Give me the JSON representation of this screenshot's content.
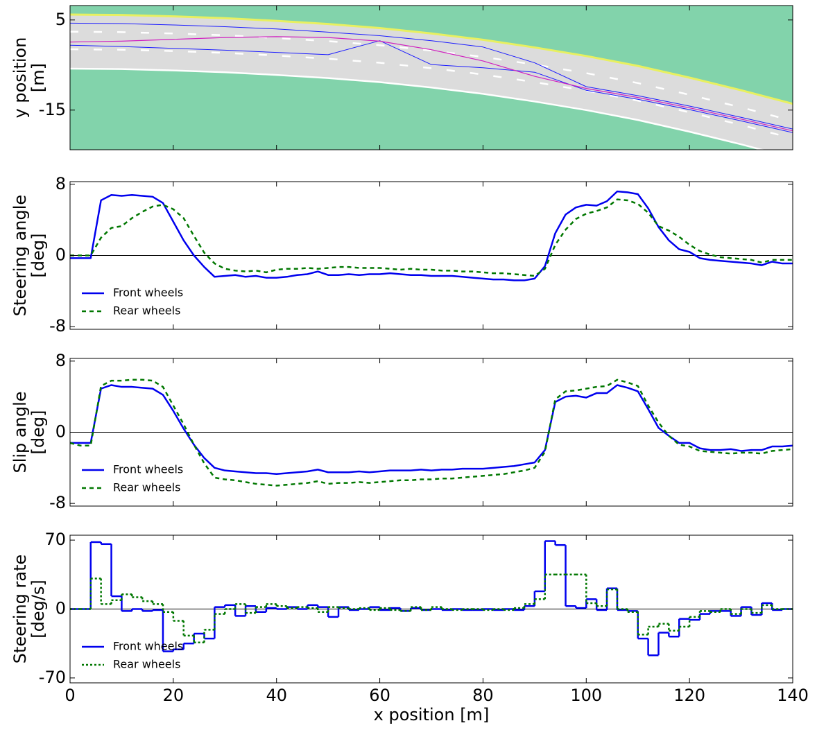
{
  "chart_data": [
    {
      "type": "line",
      "ylabel": [
        "y position",
        "[m]"
      ],
      "background_color": "#82d3ab",
      "road_color": "#dcdcdc",
      "xlim": [
        0,
        140
      ],
      "ylim": [
        -23.8,
        8.2
      ],
      "yticks": [
        5,
        -15
      ],
      "x": [
        0,
        10,
        20,
        30,
        40,
        50,
        60,
        70,
        80,
        90,
        100,
        110,
        120,
        130,
        140
      ],
      "series": [
        {
          "color": "#e8f060",
          "width": 3,
          "style": "solid",
          "values": [
            6.2,
            6.1,
            5.8,
            5.4,
            4.8,
            4.1,
            3.2,
            2.0,
            0.6,
            -1.1,
            -3.0,
            -5.2,
            -7.8,
            -10.6,
            -13.6
          ]
        },
        {
          "color": "#ffffff",
          "width": 2.5,
          "style": "solid",
          "values": [
            -5.8,
            -5.9,
            -6.2,
            -6.6,
            -7.2,
            -7.9,
            -8.8,
            -10.0,
            -11.4,
            -13.1,
            -15.0,
            -17.2,
            -19.8,
            -22.6,
            -25.6
          ]
        },
        {
          "color": "#ffffff",
          "width": 2.5,
          "style": "lane",
          "values": [
            2.4,
            2.3,
            2.0,
            1.6,
            1.0,
            0.3,
            -0.6,
            -1.8,
            -3.2,
            -4.9,
            -6.8,
            -9.0,
            -11.6,
            -14.4,
            -17.4
          ]
        },
        {
          "color": "#ffffff",
          "width": 2.5,
          "style": "lane",
          "values": [
            -1.5,
            -1.6,
            -1.9,
            -2.3,
            -2.9,
            -3.6,
            -4.5,
            -5.7,
            -7.1,
            -8.8,
            -10.7,
            -12.9,
            -15.5,
            -18.3,
            -21.3
          ]
        },
        {
          "color": "#1a1aff",
          "width": 1,
          "style": "solid",
          "values": [
            4.3,
            4.2,
            3.9,
            3.5,
            3.0,
            2.3,
            1.5,
            0.4,
            -1.0,
            -4.5,
            -9.8,
            -11.8,
            -14.1,
            -16.6,
            -19.2
          ]
        },
        {
          "color": "#1a1aff",
          "width": 1,
          "style": "solid",
          "values": [
            -0.6,
            -0.9,
            -1.3,
            -1.7,
            -2.2,
            -2.7,
            0.4,
            -4.9,
            -5.6,
            -6.6,
            -10.6,
            -12.6,
            -14.9,
            -17.4,
            -20.0
          ]
        },
        {
          "color": "#d020c0",
          "width": 1.2,
          "style": "solid",
          "values": [
            0.1,
            0.3,
            0.7,
            1.1,
            1.3,
            1.1,
            0.3,
            -1.6,
            -4.1,
            -7.5,
            -10.2,
            -12.2,
            -14.5,
            -17.0,
            -19.6
          ]
        }
      ]
    },
    {
      "type": "line",
      "ylabel": [
        "Steering angle",
        "[deg]"
      ],
      "xlim": [
        0,
        140
      ],
      "ylim": [
        -8.3,
        8.3
      ],
      "yticks": [
        8,
        0,
        -8
      ],
      "zero_line": true,
      "legend": "lower left",
      "x": [
        0,
        2,
        4,
        6,
        8,
        10,
        12,
        14,
        16,
        18,
        20,
        22,
        24,
        26,
        28,
        30,
        32,
        34,
        36,
        38,
        40,
        42,
        44,
        46,
        48,
        50,
        52,
        54,
        56,
        58,
        60,
        62,
        64,
        66,
        68,
        70,
        72,
        74,
        76,
        78,
        80,
        82,
        84,
        86,
        88,
        90,
        92,
        94,
        96,
        98,
        100,
        102,
        104,
        106,
        108,
        110,
        112,
        114,
        116,
        118,
        120,
        122,
        124,
        126,
        128,
        130,
        132,
        134,
        136,
        138,
        140
      ],
      "series": [
        {
          "name": "Front wheels",
          "color": "#0000ee",
          "style": "solid",
          "values": [
            -0.3,
            -0.3,
            -0.3,
            6.2,
            6.8,
            6.7,
            6.8,
            6.7,
            6.6,
            5.9,
            3.8,
            1.7,
            0,
            -1.3,
            -2.4,
            -2.3,
            -2.2,
            -2.4,
            -2.3,
            -2.5,
            -2.5,
            -2.4,
            -2.2,
            -2.1,
            -1.8,
            -2.2,
            -2.2,
            -2.1,
            -2.2,
            -2.1,
            -2.1,
            -2.0,
            -2.1,
            -2.2,
            -2.2,
            -2.3,
            -2.3,
            -2.3,
            -2.4,
            -2.5,
            -2.6,
            -2.7,
            -2.7,
            -2.8,
            -2.8,
            -2.6,
            -1.2,
            2.5,
            4.6,
            5.4,
            5.7,
            5.6,
            6.1,
            7.2,
            7.1,
            6.9,
            5.3,
            3.2,
            1.7,
            0.7,
            0.4,
            -0.3,
            -0.5,
            -0.6,
            -0.7,
            -0.8,
            -0.9,
            -1.1,
            -0.7,
            -0.9,
            -0.9
          ]
        },
        {
          "name": "Rear wheels",
          "color": "#007700",
          "style": "dashed",
          "values": [
            0,
            0,
            0,
            2.0,
            3.1,
            3.3,
            4.2,
            4.9,
            5.5,
            5.7,
            5.2,
            4.2,
            2.2,
            0.3,
            -0.9,
            -1.5,
            -1.7,
            -1.8,
            -1.7,
            -1.9,
            -1.6,
            -1.5,
            -1.5,
            -1.4,
            -1.5,
            -1.4,
            -1.3,
            -1.3,
            -1.4,
            -1.4,
            -1.4,
            -1.5,
            -1.6,
            -1.5,
            -1.6,
            -1.6,
            -1.7,
            -1.7,
            -1.8,
            -1.8,
            -1.9,
            -2.0,
            -2.0,
            -2.1,
            -2.2,
            -2.3,
            -1.5,
            1.2,
            2.9,
            4.1,
            4.7,
            5.0,
            5.4,
            6.3,
            6.2,
            5.8,
            4.8,
            3.3,
            2.8,
            2.1,
            1.2,
            0.5,
            0.1,
            -0.2,
            -0.3,
            -0.4,
            -0.5,
            -0.8,
            -0.5,
            -0.5,
            -0.5
          ]
        }
      ]
    },
    {
      "type": "line",
      "ylabel": [
        "Slip angle",
        "[deg]"
      ],
      "xlim": [
        0,
        140
      ],
      "ylim": [
        -8.3,
        8.3
      ],
      "yticks": [
        8,
        0,
        -8
      ],
      "zero_line": true,
      "legend": "lower left",
      "x": [
        0,
        2,
        4,
        6,
        8,
        10,
        12,
        14,
        16,
        18,
        20,
        22,
        24,
        26,
        28,
        30,
        32,
        34,
        36,
        38,
        40,
        42,
        44,
        46,
        48,
        50,
        52,
        54,
        56,
        58,
        60,
        62,
        64,
        66,
        68,
        70,
        72,
        74,
        76,
        78,
        80,
        82,
        84,
        86,
        88,
        90,
        92,
        94,
        96,
        98,
        100,
        102,
        104,
        106,
        108,
        110,
        112,
        114,
        116,
        118,
        120,
        122,
        124,
        126,
        128,
        130,
        132,
        134,
        136,
        138,
        140
      ],
      "series": [
        {
          "name": "Front wheels",
          "color": "#0000ee",
          "style": "solid",
          "values": [
            -1.2,
            -1.2,
            -1.2,
            4.9,
            5.3,
            5.1,
            5.1,
            5.0,
            4.9,
            4.2,
            2.4,
            0.4,
            -1.4,
            -2.9,
            -4.0,
            -4.3,
            -4.4,
            -4.5,
            -4.6,
            -4.6,
            -4.7,
            -4.6,
            -4.5,
            -4.4,
            -4.2,
            -4.5,
            -4.5,
            -4.5,
            -4.4,
            -4.5,
            -4.4,
            -4.3,
            -4.3,
            -4.3,
            -4.2,
            -4.3,
            -4.2,
            -4.2,
            -4.1,
            -4.1,
            -4.1,
            -4.0,
            -3.9,
            -3.8,
            -3.6,
            -3.4,
            -2.0,
            3.4,
            4.0,
            4.1,
            3.9,
            4.4,
            4.4,
            5.3,
            5.0,
            4.6,
            2.6,
            0.5,
            -0.4,
            -1.2,
            -1.2,
            -1.8,
            -2.0,
            -2.0,
            -1.9,
            -2.1,
            -2.0,
            -2.0,
            -1.6,
            -1.6,
            -1.5
          ]
        },
        {
          "name": "Rear wheels",
          "color": "#007700",
          "style": "dashed",
          "values": [
            -1.2,
            -1.5,
            -1.5,
            5.2,
            5.8,
            5.8,
            5.9,
            5.9,
            5.8,
            5.1,
            3.0,
            0.9,
            -1.4,
            -3.5,
            -5.1,
            -5.3,
            -5.4,
            -5.6,
            -5.8,
            -5.9,
            -6.0,
            -5.9,
            -5.8,
            -5.7,
            -5.5,
            -5.8,
            -5.7,
            -5.7,
            -5.6,
            -5.7,
            -5.6,
            -5.5,
            -5.4,
            -5.4,
            -5.3,
            -5.3,
            -5.2,
            -5.2,
            -5.1,
            -5.0,
            -4.9,
            -4.8,
            -4.7,
            -4.5,
            -4.3,
            -4.0,
            -2.2,
            3.7,
            4.6,
            4.7,
            4.9,
            5.1,
            5.2,
            5.9,
            5.6,
            5.2,
            3.0,
            1.1,
            -0.4,
            -1.4,
            -1.6,
            -2.1,
            -2.2,
            -2.3,
            -2.4,
            -2.3,
            -2.3,
            -2.4,
            -2.1,
            -2.0,
            -1.9
          ]
        }
      ]
    },
    {
      "type": "step",
      "ylabel": [
        "Steering rate",
        "[deg/s]"
      ],
      "xlabel": "x position [m]",
      "xlim": [
        0,
        140
      ],
      "ylim": [
        -75,
        75
      ],
      "yticks": [
        70,
        0,
        -70
      ],
      "xticks": [
        0,
        20,
        40,
        60,
        80,
        100,
        120,
        140
      ],
      "zero_line": true,
      "legend": "lower left",
      "x": [
        0,
        2,
        4,
        6,
        8,
        10,
        12,
        14,
        16,
        18,
        20,
        22,
        24,
        26,
        28,
        30,
        32,
        34,
        36,
        38,
        40,
        42,
        44,
        46,
        48,
        50,
        52,
        54,
        56,
        58,
        60,
        62,
        64,
        66,
        68,
        70,
        72,
        74,
        76,
        78,
        80,
        82,
        84,
        86,
        88,
        90,
        92,
        94,
        96,
        98,
        100,
        102,
        104,
        106,
        108,
        110,
        112,
        114,
        116,
        118,
        120,
        122,
        124,
        126,
        128,
        130,
        132,
        134,
        136,
        138,
        140
      ],
      "series": [
        {
          "name": "Front wheels",
          "color": "#0000ee",
          "style": "solid",
          "values": [
            0,
            0,
            68,
            66,
            13,
            -2,
            0,
            -2,
            -1,
            -43,
            -41,
            -35,
            -25,
            -30,
            2,
            4,
            -7,
            3,
            -3,
            1,
            0,
            2,
            0,
            4,
            2,
            -8,
            2,
            -1,
            0,
            2,
            -1,
            1,
            -2,
            1,
            -1,
            0,
            -1,
            0,
            -1,
            -1,
            0,
            -1,
            0,
            -1,
            3,
            18,
            69,
            65,
            3,
            1,
            10,
            -1,
            21,
            -1,
            -2,
            -30,
            -47,
            -24,
            -28,
            -10,
            -11,
            -5,
            -2,
            -2,
            -7,
            2,
            -6,
            6,
            -1,
            0,
            0
          ]
        },
        {
          "name": "Rear wheels",
          "color": "#007700",
          "style": "dotted",
          "values": [
            0,
            0,
            31,
            5,
            9,
            15,
            12,
            8,
            5,
            -3,
            -12,
            -27,
            -34,
            -21,
            -5,
            0,
            5,
            -4,
            2,
            5,
            3,
            1,
            2,
            1,
            -3,
            2,
            1,
            0,
            1,
            -1,
            1,
            -1,
            -2,
            2,
            -1,
            2,
            0,
            -1,
            0,
            0,
            -1,
            0,
            -1,
            1,
            5,
            10,
            35,
            35,
            35,
            35,
            6,
            3,
            20,
            0,
            -3,
            -26,
            -18,
            -15,
            -22,
            -18,
            -8,
            -2,
            -3,
            0,
            -5,
            0,
            -4,
            4,
            0,
            0,
            0
          ]
        }
      ]
    }
  ]
}
